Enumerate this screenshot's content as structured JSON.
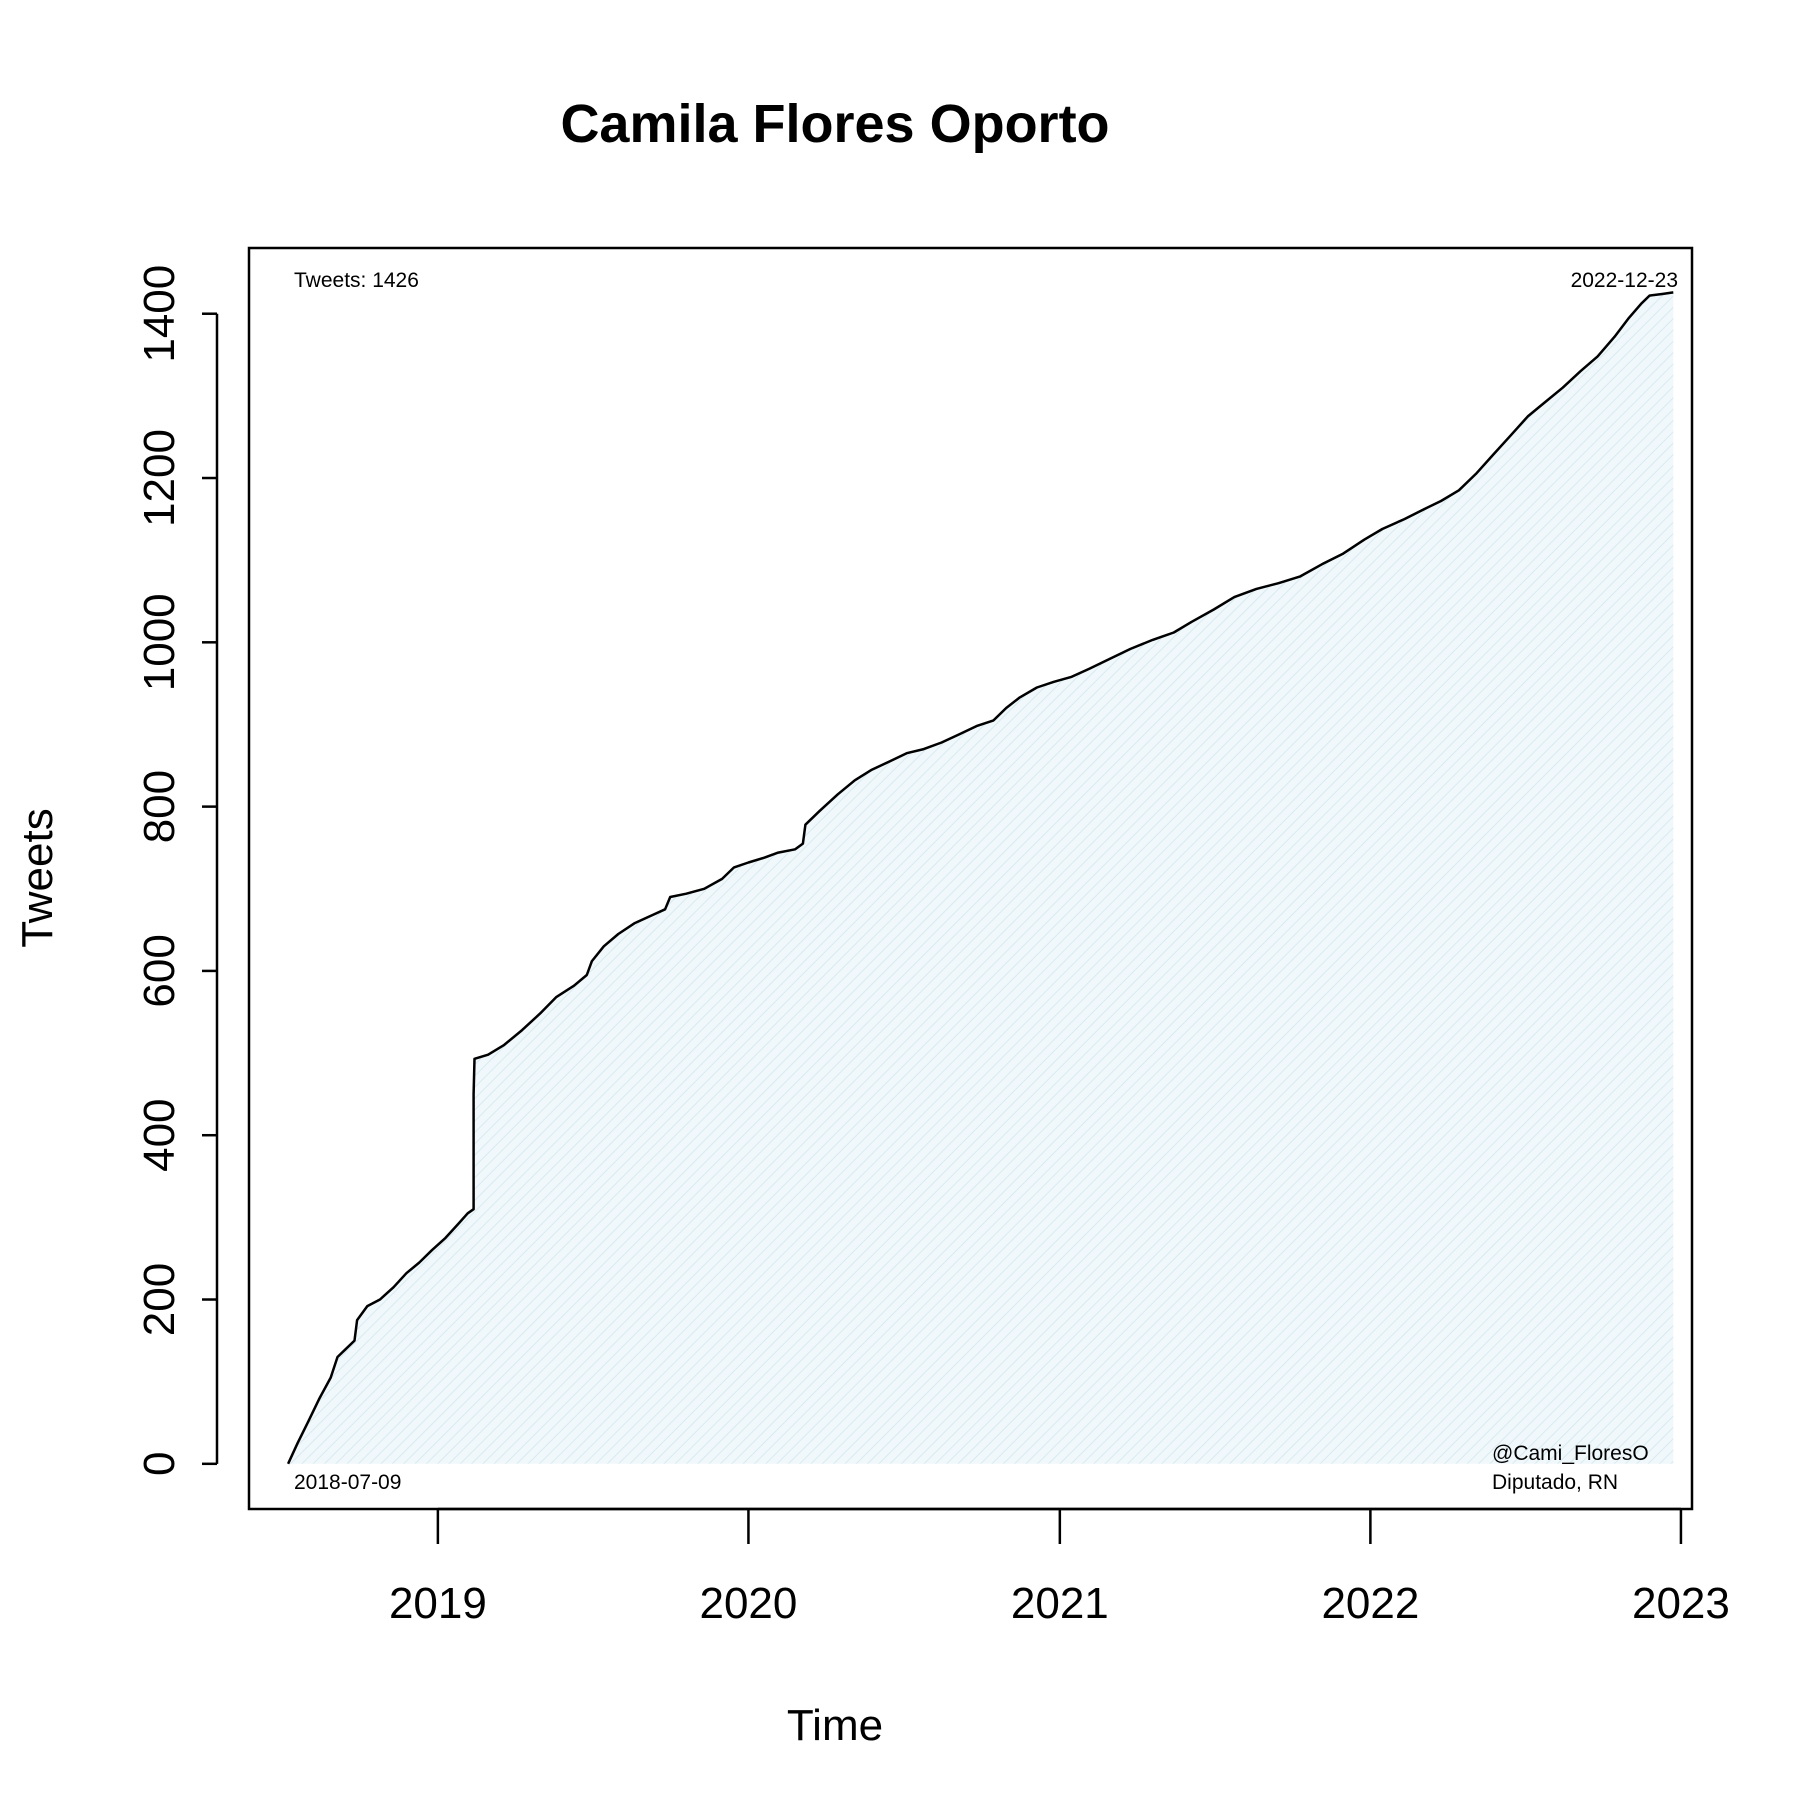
{
  "chart_data": {
    "type": "area",
    "title": "Camila Flores Oporto",
    "xlabel": "Time",
    "ylabel": "Tweets",
    "xlim": [
      "2018-05-24",
      "2023-01-14"
    ],
    "ylim": [
      -55,
      1480
    ],
    "x_ticks": [
      "2019",
      "2020",
      "2021",
      "2022",
      "2023"
    ],
    "y_ticks": [
      "0",
      "200",
      "400",
      "600",
      "800",
      "1000",
      "1200",
      "1400"
    ],
    "grid": false,
    "series": [
      {
        "color": "#000000",
        "fill_color": "#eaf4f8",
        "points": [
          [
            "2018-07-09",
            0
          ],
          [
            "2018-07-20",
            25
          ],
          [
            "2018-08-01",
            50
          ],
          [
            "2018-08-15",
            80
          ],
          [
            "2018-08-28",
            105
          ],
          [
            "2018-09-05",
            130
          ],
          [
            "2018-09-15",
            140
          ],
          [
            "2018-09-25",
            150
          ],
          [
            "2018-09-28",
            175
          ],
          [
            "2018-10-10",
            192
          ],
          [
            "2018-10-25",
            200
          ],
          [
            "2018-11-10",
            215
          ],
          [
            "2018-11-25",
            232
          ],
          [
            "2018-12-10",
            245
          ],
          [
            "2018-12-25",
            260
          ],
          [
            "2019-01-10",
            275
          ],
          [
            "2019-01-25",
            292
          ],
          [
            "2019-02-05",
            305
          ],
          [
            "2019-02-12",
            310
          ],
          [
            "2019-02-12",
            450
          ],
          [
            "2019-02-13",
            493
          ],
          [
            "2019-03-01",
            498
          ],
          [
            "2019-03-20",
            510
          ],
          [
            "2019-04-10",
            528
          ],
          [
            "2019-05-01",
            548
          ],
          [
            "2019-05-20",
            568
          ],
          [
            "2019-06-10",
            582
          ],
          [
            "2019-06-25",
            595
          ],
          [
            "2019-07-01",
            612
          ],
          [
            "2019-07-15",
            630
          ],
          [
            "2019-08-01",
            645
          ],
          [
            "2019-08-20",
            658
          ],
          [
            "2019-09-10",
            668
          ],
          [
            "2019-09-25",
            675
          ],
          [
            "2019-10-01",
            690
          ],
          [
            "2019-10-20",
            694
          ],
          [
            "2019-11-10",
            700
          ],
          [
            "2019-12-01",
            712
          ],
          [
            "2019-12-15",
            726
          ],
          [
            "2020-01-01",
            732
          ],
          [
            "2020-01-20",
            738
          ],
          [
            "2020-02-05",
            744
          ],
          [
            "2020-02-25",
            748
          ],
          [
            "2020-03-05",
            755
          ],
          [
            "2020-03-08",
            778
          ],
          [
            "2020-03-25",
            795
          ],
          [
            "2020-04-15",
            815
          ],
          [
            "2020-05-05",
            832
          ],
          [
            "2020-05-25",
            845
          ],
          [
            "2020-06-15",
            855
          ],
          [
            "2020-07-05",
            865
          ],
          [
            "2020-07-25",
            870
          ],
          [
            "2020-08-15",
            878
          ],
          [
            "2020-09-05",
            888
          ],
          [
            "2020-09-25",
            898
          ],
          [
            "2020-10-15",
            905
          ],
          [
            "2020-10-30",
            920
          ],
          [
            "2020-11-15",
            933
          ],
          [
            "2020-12-05",
            945
          ],
          [
            "2020-12-25",
            952
          ],
          [
            "2021-01-15",
            958
          ],
          [
            "2021-02-05",
            968
          ],
          [
            "2021-03-01",
            980
          ],
          [
            "2021-03-25",
            992
          ],
          [
            "2021-04-20",
            1003
          ],
          [
            "2021-05-15",
            1012
          ],
          [
            "2021-06-05",
            1025
          ],
          [
            "2021-07-01",
            1040
          ],
          [
            "2021-07-25",
            1055
          ],
          [
            "2021-08-20",
            1065
          ],
          [
            "2021-09-15",
            1072
          ],
          [
            "2021-10-10",
            1080
          ],
          [
            "2021-11-05",
            1095
          ],
          [
            "2021-11-30",
            1108
          ],
          [
            "2021-12-25",
            1125
          ],
          [
            "2022-01-15",
            1138
          ],
          [
            "2022-02-10",
            1150
          ],
          [
            "2022-03-05",
            1162
          ],
          [
            "2022-03-25",
            1172
          ],
          [
            "2022-04-15",
            1185
          ],
          [
            "2022-05-05",
            1205
          ],
          [
            "2022-05-25",
            1228
          ],
          [
            "2022-06-15",
            1252
          ],
          [
            "2022-07-05",
            1275
          ],
          [
            "2022-07-25",
            1292
          ],
          [
            "2022-08-15",
            1310
          ],
          [
            "2022-09-05",
            1330
          ],
          [
            "2022-09-25",
            1348
          ],
          [
            "2022-10-15",
            1372
          ],
          [
            "2022-11-01",
            1395
          ],
          [
            "2022-11-15",
            1412
          ],
          [
            "2022-11-25",
            1422
          ],
          [
            "2022-12-10",
            1424
          ],
          [
            "2022-12-23",
            1426
          ]
        ]
      }
    ],
    "annotations": {
      "tweet_count": "Tweets: 1426",
      "end_date": "2022-12-23",
      "start_date": "2018-07-09",
      "handle": "@Cami_FloresO",
      "affiliation": "Diputado, RN"
    }
  }
}
